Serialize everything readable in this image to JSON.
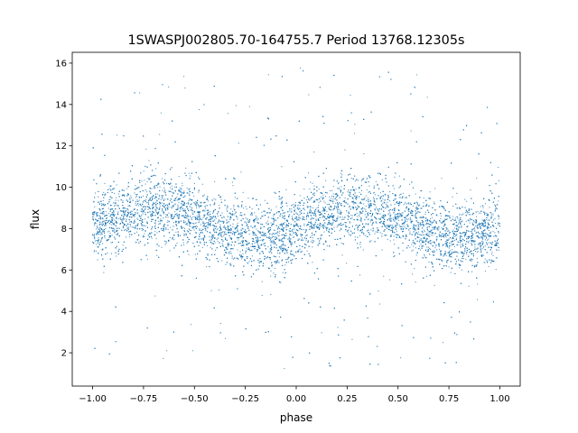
{
  "chart_data": {
    "type": "scatter",
    "title": "1SWASPJ002805.70-164755.7 Period 13768.12305s",
    "xlabel": "phase",
    "ylabel": "flux",
    "xlim": [
      -1.1,
      1.1
    ],
    "ylim": [
      0.39,
      16.52
    ],
    "xticks": [
      -1.0,
      -0.75,
      -0.5,
      -0.25,
      0.0,
      0.25,
      0.5,
      0.75,
      1.0
    ],
    "xtick_labels": [
      "−1.00",
      "−0.75",
      "−0.50",
      "−0.25",
      "0.00",
      "0.25",
      "0.50",
      "0.75",
      "1.00"
    ],
    "yticks": [
      2,
      4,
      6,
      8,
      10,
      12,
      14,
      16
    ],
    "ytick_labels": [
      "2",
      "4",
      "6",
      "8",
      "10",
      "12",
      "14",
      "16"
    ],
    "grid": false,
    "marker_color": "#1f77b4",
    "binned_trend": {
      "x": [
        -1.0,
        -0.75,
        -0.5,
        -0.25,
        0.0,
        0.25,
        0.5,
        0.75,
        1.0
      ],
      "y": [
        8.48,
        8.96,
        8.02,
        7.54,
        8.48,
        8.96,
        8.02,
        7.54,
        8.48
      ]
    },
    "core_spread": 1.5,
    "outlier_range": [
      1.2,
      15.8
    ]
  }
}
